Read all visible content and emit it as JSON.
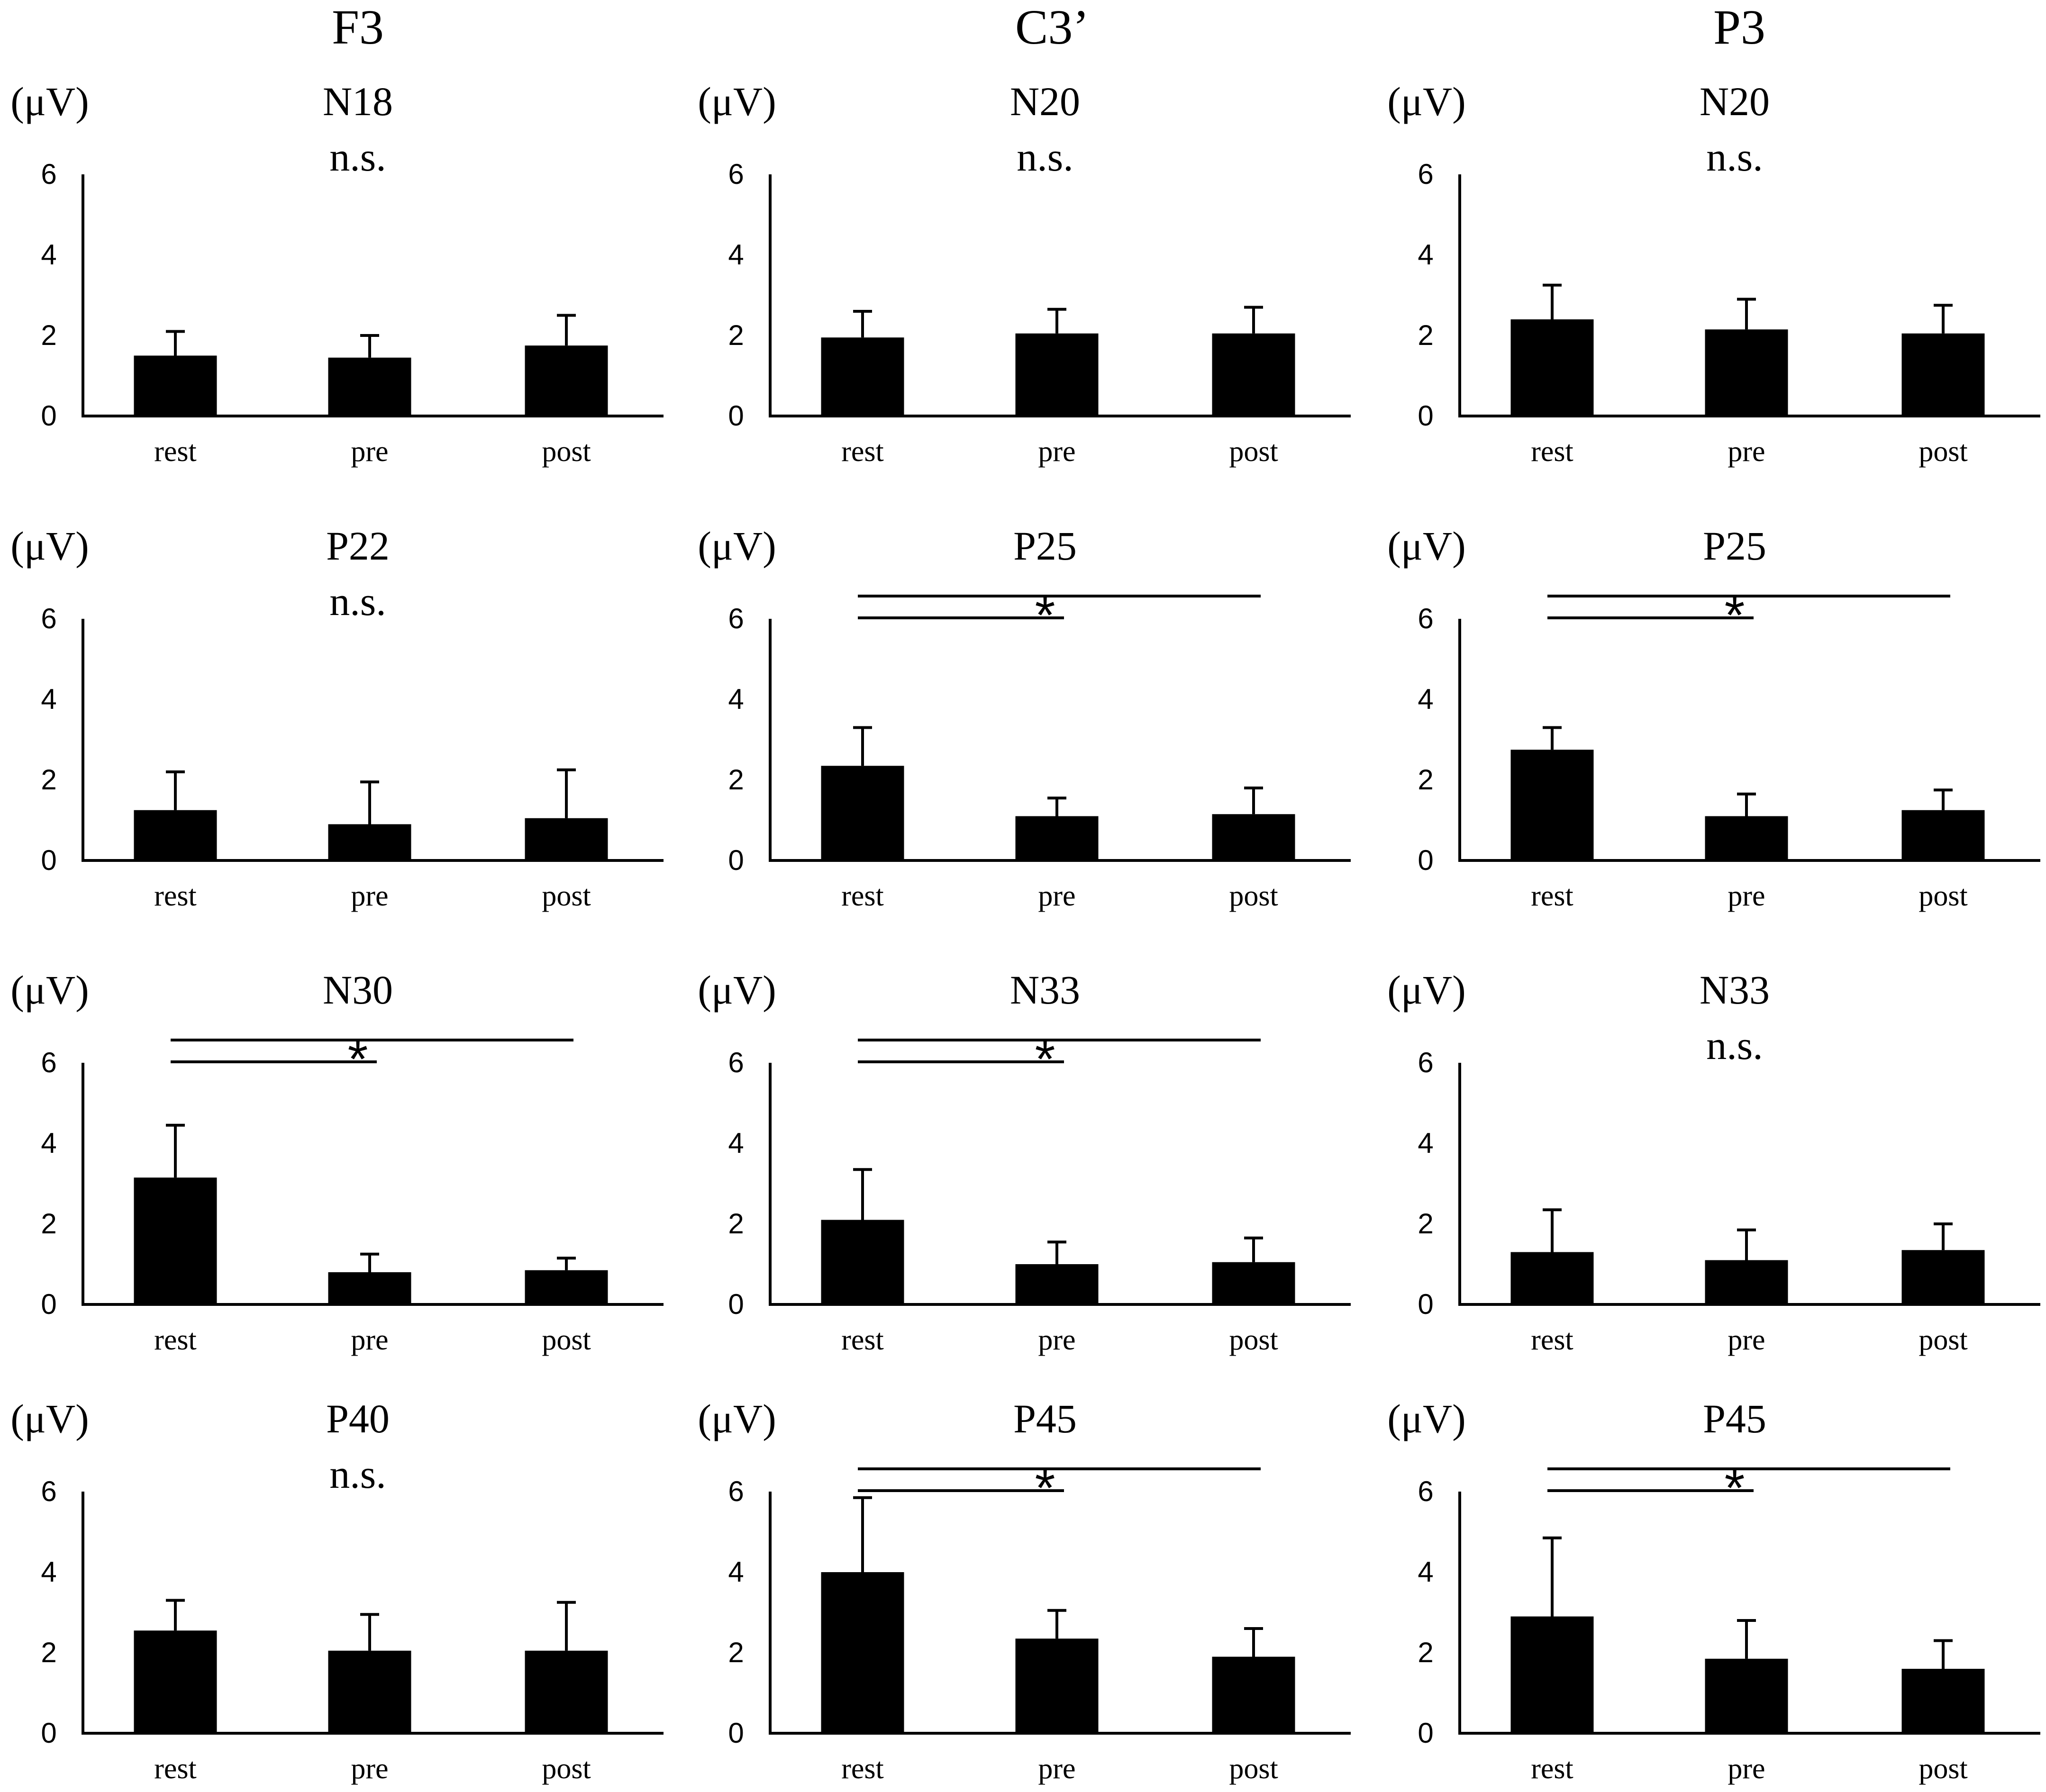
{
  "column_headers": [
    "F3",
    "C3’",
    "P3"
  ],
  "chart_data": [
    {
      "type": "bar",
      "row": 0,
      "col": 0,
      "title": "N18",
      "significance": "n.s.",
      "ylabel": "(μV)",
      "ylim": [
        0,
        6
      ],
      "yticks": [
        "0",
        "2",
        "4",
        "6"
      ],
      "categories": [
        "rest",
        "pre",
        "post"
      ],
      "values": [
        1.5,
        1.45,
        1.75
      ],
      "errors": [
        0.6,
        0.55,
        0.75
      ],
      "brackets": []
    },
    {
      "type": "bar",
      "row": 0,
      "col": 1,
      "title": "N20",
      "significance": "n.s.",
      "ylabel": "(μV)",
      "ylim": [
        0,
        6
      ],
      "yticks": [
        "0",
        "2",
        "4",
        "6"
      ],
      "categories": [
        "rest",
        "pre",
        "post"
      ],
      "values": [
        1.95,
        2.05,
        2.05
      ],
      "errors": [
        0.65,
        0.6,
        0.65
      ],
      "brackets": []
    },
    {
      "type": "bar",
      "row": 0,
      "col": 2,
      "title": "N20",
      "significance": "n.s.",
      "ylabel": "(μV)",
      "ylim": [
        0,
        6
      ],
      "yticks": [
        "0",
        "2",
        "4",
        "6"
      ],
      "categories": [
        "rest",
        "pre",
        "post"
      ],
      "values": [
        2.4,
        2.15,
        2.05
      ],
      "errors": [
        0.85,
        0.75,
        0.7
      ],
      "brackets": []
    },
    {
      "type": "bar",
      "row": 1,
      "col": 0,
      "title": "P22",
      "significance": "n.s.",
      "ylabel": "(μV)",
      "ylim": [
        0,
        6
      ],
      "yticks": [
        "0",
        "2",
        "4",
        "6"
      ],
      "categories": [
        "rest",
        "pre",
        "post"
      ],
      "values": [
        1.25,
        0.9,
        1.05
      ],
      "errors": [
        0.95,
        1.05,
        1.2
      ],
      "brackets": []
    },
    {
      "type": "bar",
      "row": 1,
      "col": 1,
      "title": "P25",
      "significance": "*",
      "ylabel": "(μV)",
      "ylim": [
        0,
        6
      ],
      "yticks": [
        "0",
        "2",
        "4",
        "6"
      ],
      "categories": [
        "rest",
        "pre",
        "post"
      ],
      "values": [
        2.35,
        1.1,
        1.15
      ],
      "errors": [
        0.95,
        0.45,
        0.65
      ],
      "brackets": [
        [
          "rest",
          "pre"
        ],
        [
          "rest",
          "post"
        ]
      ]
    },
    {
      "type": "bar",
      "row": 1,
      "col": 2,
      "title": "P25",
      "significance": "*",
      "ylabel": "(μV)",
      "ylim": [
        0,
        6
      ],
      "yticks": [
        "0",
        "2",
        "4",
        "6"
      ],
      "categories": [
        "rest",
        "pre",
        "post"
      ],
      "values": [
        2.75,
        1.1,
        1.25
      ],
      "errors": [
        0.55,
        0.55,
        0.5
      ],
      "brackets": [
        [
          "rest",
          "pre"
        ],
        [
          "rest",
          "post"
        ]
      ]
    },
    {
      "type": "bar",
      "row": 2,
      "col": 0,
      "title": "N30",
      "significance": "*",
      "ylabel": "(μV)",
      "ylim": [
        0,
        6
      ],
      "yticks": [
        "0",
        "2",
        "4",
        "6"
      ],
      "categories": [
        "rest",
        "pre",
        "post"
      ],
      "values": [
        3.15,
        0.8,
        0.85
      ],
      "errors": [
        1.3,
        0.45,
        0.3
      ],
      "brackets": [
        [
          "rest",
          "pre"
        ],
        [
          "rest",
          "post"
        ]
      ]
    },
    {
      "type": "bar",
      "row": 2,
      "col": 1,
      "title": "N33",
      "significance": "*",
      "ylabel": "(μV)",
      "ylim": [
        0,
        6
      ],
      "yticks": [
        "0",
        "2",
        "4",
        "6"
      ],
      "categories": [
        "rest",
        "pre",
        "post"
      ],
      "values": [
        2.1,
        1.0,
        1.05
      ],
      "errors": [
        1.25,
        0.55,
        0.6
      ],
      "brackets": [
        [
          "rest",
          "pre"
        ],
        [
          "rest",
          "post"
        ]
      ]
    },
    {
      "type": "bar",
      "row": 2,
      "col": 2,
      "title": "N33",
      "significance": "n.s.",
      "ylabel": "(μV)",
      "ylim": [
        0,
        6
      ],
      "yticks": [
        "0",
        "2",
        "4",
        "6"
      ],
      "categories": [
        "rest",
        "pre",
        "post"
      ],
      "values": [
        1.3,
        1.1,
        1.35
      ],
      "errors": [
        1.05,
        0.75,
        0.65
      ],
      "brackets": []
    },
    {
      "type": "bar",
      "row": 3,
      "col": 0,
      "title": "P40",
      "significance": "n.s.",
      "ylabel": "(μV)",
      "ylim": [
        0,
        6
      ],
      "yticks": [
        "0",
        "2",
        "4",
        "6"
      ],
      "categories": [
        "rest",
        "pre",
        "post"
      ],
      "values": [
        2.55,
        2.05,
        2.05
      ],
      "errors": [
        0.75,
        0.9,
        1.2
      ],
      "brackets": []
    },
    {
      "type": "bar",
      "row": 3,
      "col": 1,
      "title": "P45",
      "significance": "*",
      "ylabel": "(μV)",
      "ylim": [
        0,
        6
      ],
      "yticks": [
        "0",
        "2",
        "4",
        "6"
      ],
      "categories": [
        "rest",
        "pre",
        "post"
      ],
      "values": [
        4.0,
        2.35,
        1.9
      ],
      "errors": [
        1.85,
        0.7,
        0.7
      ],
      "brackets": [
        [
          "rest",
          "pre"
        ],
        [
          "rest",
          "post"
        ]
      ]
    },
    {
      "type": "bar",
      "row": 3,
      "col": 2,
      "title": "P45",
      "significance": "*",
      "ylabel": "(μV)",
      "ylim": [
        0,
        6
      ],
      "yticks": [
        "0",
        "2",
        "4",
        "6"
      ],
      "categories": [
        "rest",
        "pre",
        "post"
      ],
      "values": [
        2.9,
        1.85,
        1.6
      ],
      "errors": [
        1.95,
        0.95,
        0.7
      ],
      "brackets": [
        [
          "rest",
          "pre"
        ],
        [
          "rest",
          "post"
        ]
      ]
    }
  ]
}
